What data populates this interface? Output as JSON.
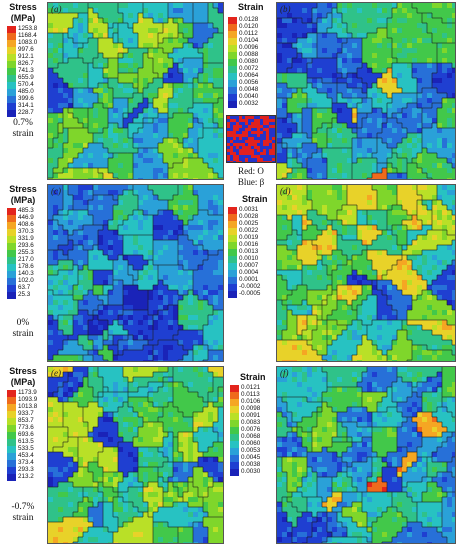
{
  "panels": [
    {
      "label": "(a)",
      "kind": "stress"
    },
    {
      "label": "(b)",
      "kind": "strain"
    },
    {
      "label": "(c)",
      "kind": "stress"
    },
    {
      "label": "(d)",
      "kind": "strain"
    },
    {
      "label": "(e)",
      "kind": "stress"
    },
    {
      "label": "(f)",
      "kind": "strain"
    }
  ],
  "legends": {
    "stress1": {
      "title": "Stress",
      "unit": "(MPa)",
      "values": [
        "1253.8",
        "1168.4",
        "1083.0",
        "997.6",
        "912.1",
        "826.7",
        "741.3",
        "655.9",
        "570.4",
        "485.0",
        "399.6",
        "314.1",
        "228.7"
      ]
    },
    "strain1": {
      "title": "Strain",
      "values": [
        "0.0128",
        "0.0120",
        "0.0112",
        "0.0104",
        "0.0096",
        "0.0088",
        "0.0080",
        "0.0072",
        "0.0064",
        "0.0056",
        "0.0048",
        "0.0040",
        "0.0032"
      ]
    },
    "stress2": {
      "title": "Stress",
      "unit": "(MPa)",
      "values": [
        "485.3",
        "446.9",
        "408.6",
        "370.3",
        "331.9",
        "293.6",
        "255.3",
        "217.0",
        "178.6",
        "140.3",
        "102.0",
        "63.7",
        "25.3"
      ]
    },
    "strain2": {
      "title": "Strain",
      "values": [
        "0.0031",
        "0.0028",
        "0.0025",
        "0.0022",
        "0.0019",
        "0.0016",
        "0.0013",
        "0.0010",
        "0.0007",
        "0.0004",
        "0.0001",
        "-0.0002",
        "-0.0005"
      ]
    },
    "stress3": {
      "title": "Stress",
      "unit": "(MPa)",
      "values": [
        "1173.9",
        "1093.9",
        "1013.8",
        "933.7",
        "853.7",
        "773.6",
        "693.6",
        "613.5",
        "533.5",
        "453.4",
        "373.4",
        "293.3",
        "213.2"
      ]
    },
    "strain3": {
      "title": "Strain",
      "values": [
        "0.0121",
        "0.0113",
        "0.0106",
        "0.0098",
        "0.0091",
        "0.0083",
        "0.0076",
        "0.0068",
        "0.0060",
        "0.0053",
        "0.0045",
        "0.0038",
        "0.0030"
      ]
    }
  },
  "strain_notes": [
    {
      "line1": "0.7%",
      "line2": "strain"
    },
    {
      "line1": "0%",
      "line2": "strain"
    },
    {
      "line1": "-0.7%",
      "line2": "strain"
    }
  ],
  "phase_legend": {
    "red": "Red: O",
    "blue": "Blue: β"
  },
  "colors": {
    "scale": [
      "#e3241c",
      "#ef6a1c",
      "#f5a623",
      "#e8d229",
      "#b9e027",
      "#7fd62b",
      "#42c84a",
      "#2fc289",
      "#27c2c2",
      "#2aa1d8",
      "#2770d8",
      "#1f3fd1",
      "#1a23b8"
    ],
    "phase_red": "#e0211f",
    "phase_blue": "#2433c8"
  }
}
